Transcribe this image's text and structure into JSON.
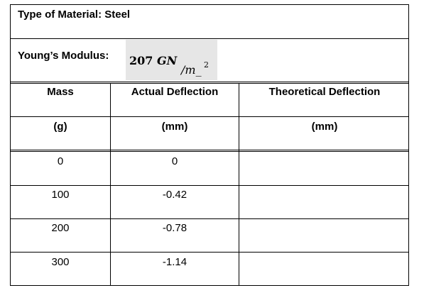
{
  "material": {
    "label": "Type of Material: Steel"
  },
  "modulus": {
    "label": "Young’s Modulus:",
    "value": "207",
    "units_main": "GN",
    "units_slash": "/m_",
    "units_exp": "2"
  },
  "table": {
    "headers": [
      "Mass",
      "Actual Deflection",
      "Theoretical Deflection"
    ],
    "units": [
      "(g)",
      "(mm)",
      "(mm)"
    ],
    "rows": [
      [
        "0",
        "0",
        ""
      ],
      [
        "100",
        "-0.42",
        ""
      ],
      [
        "200",
        "-0.78",
        ""
      ],
      [
        "300",
        "-1.14",
        ""
      ]
    ]
  }
}
